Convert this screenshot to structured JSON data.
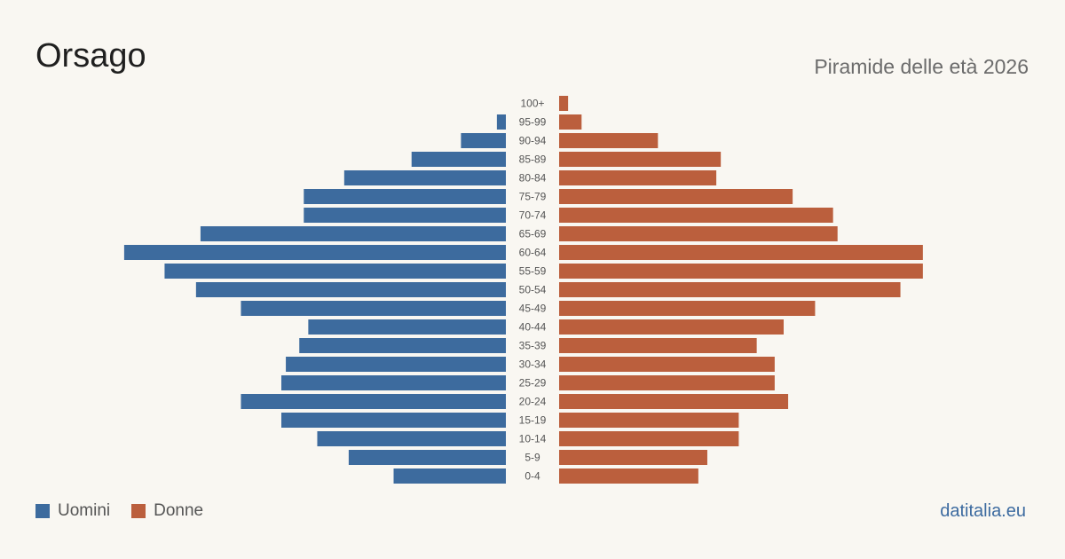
{
  "header": {
    "title": "Orsago",
    "subtitle": "Piramide delle età 2026"
  },
  "legend": {
    "men_label": "Uomini",
    "women_label": "Donne"
  },
  "source": "datitalia.eu",
  "colors": {
    "men": "#3d6b9e",
    "women": "#bb5f3d",
    "background": "#f9f7f2"
  },
  "chart_data": {
    "type": "bar",
    "orientation": "horizontal-pyramid",
    "categories": [
      "100+",
      "95-99",
      "90-94",
      "85-89",
      "80-84",
      "75-79",
      "70-74",
      "65-69",
      "60-64",
      "55-59",
      "50-54",
      "45-49",
      "40-44",
      "35-39",
      "30-34",
      "25-29",
      "20-24",
      "15-19",
      "10-14",
      "5-9",
      "0-4"
    ],
    "series": [
      {
        "name": "Uomini",
        "values": [
          0,
          2,
          10,
          21,
          36,
          45,
          45,
          68,
          85,
          76,
          69,
          59,
          44,
          46,
          49,
          50,
          59,
          50,
          42,
          35,
          25
        ]
      },
      {
        "name": "Donne",
        "values": [
          2,
          5,
          22,
          36,
          35,
          52,
          61,
          62,
          81,
          81,
          76,
          57,
          50,
          44,
          48,
          48,
          51,
          40,
          40,
          33,
          31
        ]
      }
    ],
    "grid": false,
    "legend_position": "bottom-left"
  }
}
